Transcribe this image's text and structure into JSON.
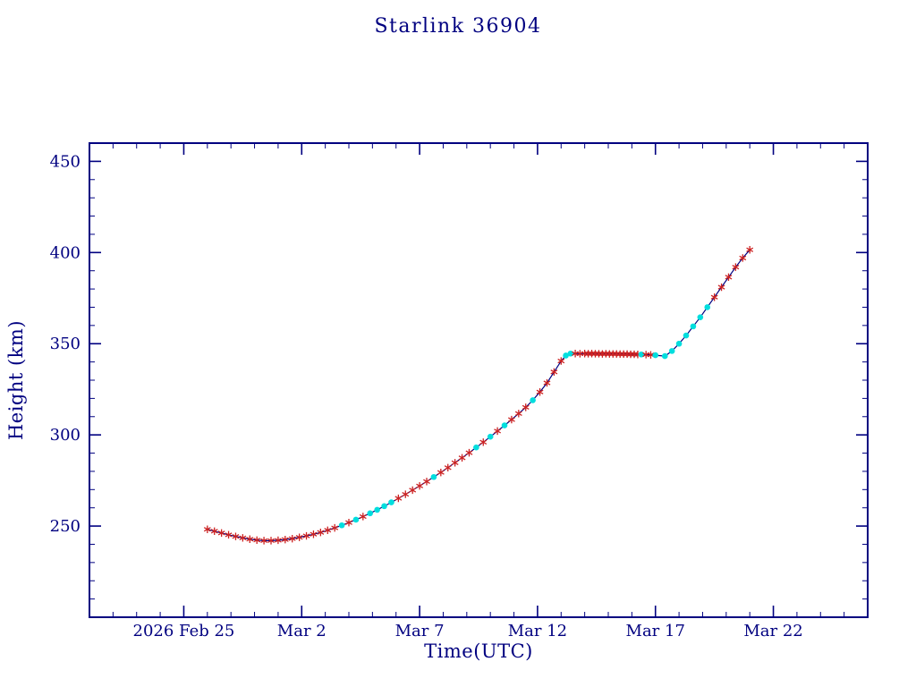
{
  "chart_data": {
    "type": "line",
    "title": "Starlink 36904",
    "xlabel": "Time(UTC)",
    "ylabel": "Height (km)",
    "x_unit": "days since 2026 Feb 25 00:00 UTC",
    "xlim": [
      -4,
      29
    ],
    "ylim": [
      200,
      460
    ],
    "grid": false,
    "legend": "none",
    "xticks": [
      {
        "t": 0,
        "label": "2026 Feb 25"
      },
      {
        "t": 5,
        "label": "Mar  2"
      },
      {
        "t": 10,
        "label": "Mar  7"
      },
      {
        "t": 15,
        "label": "Mar 12"
      },
      {
        "t": 20,
        "label": "Mar 17"
      },
      {
        "t": 25,
        "label": "Mar 22"
      }
    ],
    "yticks": [
      {
        "v": 250,
        "label": "250"
      },
      {
        "v": 300,
        "label": "300"
      },
      {
        "v": 350,
        "label": "350"
      },
      {
        "v": 400,
        "label": "400"
      },
      {
        "v": 450,
        "label": "450"
      }
    ],
    "minor_x_step_days": 1,
    "minor_y_step_km": 10,
    "markers": {
      "s": "red-asterisk",
      "d": "cyan-filled-circle"
    },
    "colors": {
      "background": "#ffffff",
      "axis": "#000080",
      "text": "#000080",
      "line": "#000080",
      "star": "#cc2222",
      "dot": "#00dede"
    },
    "points": [
      [
        1.0,
        248.2,
        "s"
      ],
      [
        1.3,
        247.2,
        "s"
      ],
      [
        1.6,
        246.2,
        "s"
      ],
      [
        1.9,
        245.2,
        "s"
      ],
      [
        2.2,
        244.3,
        "s"
      ],
      [
        2.5,
        243.5,
        "s"
      ],
      [
        2.8,
        242.8,
        "s"
      ],
      [
        3.1,
        242.3,
        "s"
      ],
      [
        3.4,
        242.0,
        "s"
      ],
      [
        3.7,
        242.0,
        "s"
      ],
      [
        4.0,
        242.2,
        "s"
      ],
      [
        4.3,
        242.6,
        "s"
      ],
      [
        4.6,
        243.1,
        "s"
      ],
      [
        4.9,
        243.8,
        "s"
      ],
      [
        5.2,
        244.6,
        "s"
      ],
      [
        5.5,
        245.5,
        "s"
      ],
      [
        5.8,
        246.5,
        "s"
      ],
      [
        6.1,
        247.7,
        "s"
      ],
      [
        6.4,
        249.0,
        "s"
      ],
      [
        6.7,
        250.4,
        "d"
      ],
      [
        7.0,
        251.9,
        "s"
      ],
      [
        7.3,
        253.5,
        "d"
      ],
      [
        7.6,
        255.2,
        "s"
      ],
      [
        7.9,
        257.0,
        "d"
      ],
      [
        8.2,
        258.9,
        "d"
      ],
      [
        8.5,
        260.9,
        "d"
      ],
      [
        8.8,
        263.0,
        "d"
      ],
      [
        9.1,
        265.2,
        "s"
      ],
      [
        9.4,
        267.4,
        "s"
      ],
      [
        9.7,
        269.7,
        "s"
      ],
      [
        10.0,
        272.0,
        "s"
      ],
      [
        10.3,
        274.4,
        "s"
      ],
      [
        10.6,
        276.9,
        "d"
      ],
      [
        10.9,
        279.4,
        "s"
      ],
      [
        11.2,
        282.0,
        "s"
      ],
      [
        11.5,
        284.7,
        "s"
      ],
      [
        11.8,
        287.4,
        "s"
      ],
      [
        12.1,
        290.2,
        "s"
      ],
      [
        12.4,
        293.1,
        "d"
      ],
      [
        12.7,
        296.0,
        "s"
      ],
      [
        13.0,
        299.0,
        "d"
      ],
      [
        13.3,
        302.1,
        "s"
      ],
      [
        13.6,
        305.2,
        "d"
      ],
      [
        13.9,
        308.4,
        "s"
      ],
      [
        14.2,
        311.7,
        "s"
      ],
      [
        14.5,
        315.1,
        "s"
      ],
      [
        14.8,
        319.0,
        "d"
      ],
      [
        15.1,
        323.5,
        "s"
      ],
      [
        15.4,
        328.5,
        "s"
      ],
      [
        15.7,
        334.5,
        "s"
      ],
      [
        16.0,
        340.5,
        "s"
      ],
      [
        16.2,
        343.5,
        "d"
      ],
      [
        16.4,
        344.6,
        "d"
      ],
      [
        16.6,
        344.6,
        "s"
      ],
      [
        16.8,
        344.5,
        "s"
      ],
      [
        17.0,
        344.6,
        "s"
      ],
      [
        17.15,
        344.5,
        "s"
      ],
      [
        17.3,
        344.6,
        "s"
      ],
      [
        17.45,
        344.5,
        "s"
      ],
      [
        17.6,
        344.5,
        "s"
      ],
      [
        17.75,
        344.4,
        "s"
      ],
      [
        17.9,
        344.5,
        "s"
      ],
      [
        18.05,
        344.4,
        "s"
      ],
      [
        18.2,
        344.4,
        "s"
      ],
      [
        18.35,
        344.4,
        "s"
      ],
      [
        18.5,
        344.3,
        "s"
      ],
      [
        18.65,
        344.3,
        "s"
      ],
      [
        18.8,
        344.3,
        "s"
      ],
      [
        18.95,
        344.2,
        "s"
      ],
      [
        19.1,
        344.2,
        "s"
      ],
      [
        19.25,
        344.1,
        "s"
      ],
      [
        19.4,
        344.1,
        "d"
      ],
      [
        19.6,
        344.0,
        "s"
      ],
      [
        19.8,
        343.9,
        "s"
      ],
      [
        20.0,
        343.7,
        "d"
      ],
      [
        20.4,
        343.2,
        "d"
      ],
      [
        20.7,
        346.0,
        "d"
      ],
      [
        21.0,
        350.0,
        "d"
      ],
      [
        21.3,
        354.5,
        "d"
      ],
      [
        21.6,
        359.5,
        "d"
      ],
      [
        21.9,
        364.5,
        "d"
      ],
      [
        22.2,
        370.0,
        "d"
      ],
      [
        22.5,
        375.5,
        "s"
      ],
      [
        22.8,
        381.0,
        "s"
      ],
      [
        23.1,
        386.5,
        "s"
      ],
      [
        23.4,
        392.0,
        "s"
      ],
      [
        23.7,
        397.0,
        "s"
      ],
      [
        24.0,
        401.5,
        "s"
      ]
    ]
  }
}
